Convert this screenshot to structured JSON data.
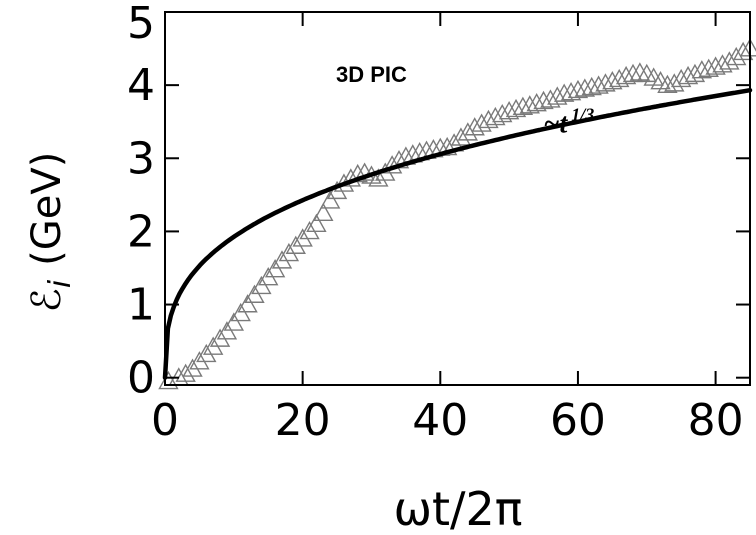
{
  "chart_data": {
    "type": "scatter",
    "title": "3D PIC",
    "xlabel": "ωt/2π",
    "ylabel_main": "ℰ",
    "ylabel_sub": "i",
    "ylabel_unit": "(GeV)",
    "xlim": [
      0,
      85
    ],
    "ylim": [
      -0.1,
      5
    ],
    "xticks": [
      "0",
      "20",
      "40",
      "60",
      "80"
    ],
    "xtick_values": [
      0,
      20,
      40,
      60,
      80
    ],
    "yticks": [
      "0",
      "1",
      "2",
      "3",
      "4",
      "5"
    ],
    "ytick_values": [
      0,
      1,
      2,
      3,
      4,
      5
    ],
    "annotation": {
      "text": "~t",
      "superscript": "1/3",
      "x": 55,
      "y": 3.35
    },
    "colors": {
      "fit": "#000000",
      "markers": "#7a7a7a",
      "frame": "#000000"
    },
    "series": [
      {
        "type": "scatter",
        "marker": "triangle",
        "x": [
          0.5,
          2,
          3,
          4,
          5,
          6,
          7,
          8,
          9,
          10,
          11,
          12,
          13,
          14,
          15,
          16,
          17,
          18,
          19,
          20,
          21,
          22,
          23,
          24,
          25,
          26,
          27,
          28,
          29,
          30,
          31,
          32,
          33,
          34,
          35,
          36,
          37,
          38,
          39,
          40,
          41,
          42,
          43,
          44,
          45,
          46,
          47,
          48,
          49,
          50,
          51,
          52,
          53,
          54,
          55,
          56,
          57,
          58,
          59,
          60,
          61,
          62,
          63,
          64,
          65,
          66,
          67,
          68,
          69,
          70,
          71,
          72,
          73,
          74,
          75,
          76,
          77,
          78,
          79,
          80,
          81,
          82,
          83,
          84,
          85
        ],
        "y": [
          -0.05,
          0.0,
          0.05,
          0.12,
          0.22,
          0.32,
          0.42,
          0.53,
          0.63,
          0.75,
          0.88,
          1.0,
          1.13,
          1.25,
          1.37,
          1.48,
          1.6,
          1.7,
          1.8,
          1.9,
          2.0,
          2.1,
          2.25,
          2.42,
          2.55,
          2.65,
          2.72,
          2.78,
          2.8,
          2.76,
          2.72,
          2.8,
          2.9,
          2.97,
          3.02,
          3.05,
          3.08,
          3.1,
          3.12,
          3.14,
          3.15,
          3.2,
          3.28,
          3.35,
          3.42,
          3.47,
          3.52,
          3.56,
          3.6,
          3.64,
          3.67,
          3.7,
          3.72,
          3.75,
          3.78,
          3.8,
          3.84,
          3.88,
          3.9,
          3.93,
          3.95,
          3.97,
          3.99,
          4.02,
          4.05,
          4.08,
          4.12,
          4.15,
          4.17,
          4.15,
          4.1,
          4.05,
          4.0,
          4.02,
          4.08,
          4.12,
          4.15,
          4.2,
          4.22,
          4.25,
          4.28,
          4.32,
          4.38,
          4.45,
          4.5
        ]
      },
      {
        "type": "line",
        "function": "power law ~t^(1/3)",
        "coefficient": 0.894,
        "exponent": 0.3333,
        "x_range": [
          0,
          85
        ]
      }
    ]
  }
}
